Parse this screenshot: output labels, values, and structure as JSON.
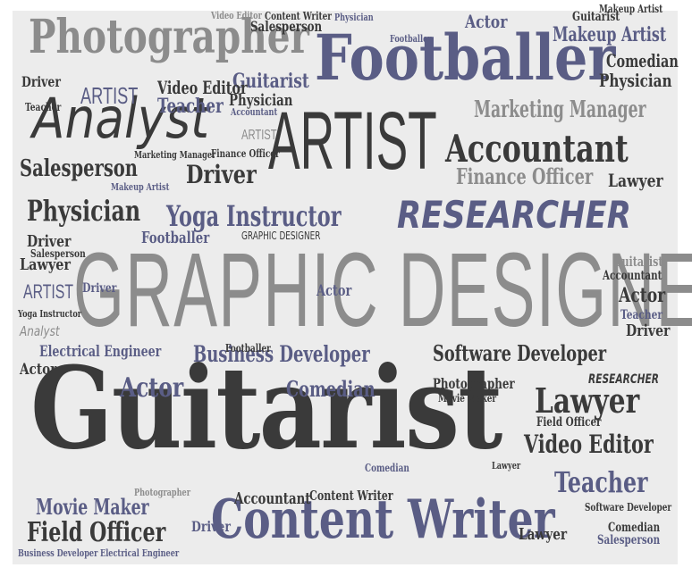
{
  "colors": {
    "background": "#ececec",
    "dark": "#3a3a3a",
    "gray": "#8c8c8c",
    "blue": "#5a5d85"
  },
  "words": {
    "guitarist_big": "Guitarist",
    "graphic_designer_big": "GRAPHIC DESIGNER",
    "footballer_big": "Footballer",
    "content_writer_big": "Content Writer",
    "photographer_big": "Photographer",
    "artist_big": "ARTIST",
    "analyst_big": "Analyst",
    "researcher_big": "RESEARCHER",
    "accountant_big": "Accountant",
    "yoga_instructor": "Yoga Instructor",
    "physician_big": "Physician",
    "salesperson_big": "Salesperson",
    "driver_big": "Driver",
    "marketing_manager": "Marketing Manager",
    "finance_officer_big": "Finance Officer",
    "business_developer_big": "Business Developer",
    "software_developer_big": "Software Developer",
    "electrical_engineer_big": "Electrical Engineer",
    "lawyer_big": "Lawyer",
    "teacher_big": "Teacher",
    "video_editor_big": "Video Editor",
    "actor_big": "Actor",
    "comedian_big": "Comedian",
    "field_officer_big": "Field Officer",
    "movie_maker_big": "Movie Maker",
    "makeup_artist_big": "Makeup Artist",
    "guitarist_mid": "Guitarist",
    "accountant_mid": "Accountant",
    "artist_mid": "ARTIST",
    "teacher_mid": "Teacher",
    "physician_mid": "Physician",
    "video_editor_mid": "Video Editor",
    "lawyer_mid": "Lawyer",
    "footballer_mid": "Footballer",
    "driver_mid": "Driver",
    "comedian_mid": "Comedian",
    "physician_right": "Physician",
    "lawyer_right": "Lawyer",
    "actor_right": "Actor",
    "driver_right": "Driver",
    "salesperson_left": "Salesperson",
    "lawyer_left": "Lawyer",
    "artist_left": "ARTIST",
    "driver_left": "Driver",
    "teacher_left": "Teacher",
    "actor_left": "Actor",
    "actor_mid": "Actor",
    "driver_bottom": "Driver",
    "accountant_bottom": "Accountant",
    "comedian_bottom": "Comedian",
    "salesperson_bottom": "Salesperson",
    "makeup_artist_mid": "Makeup Artist",
    "footballer_left": "Footballer",
    "content_writer_mid": "Content Writer",
    "photographer_mid": "Photographer",
    "guitarist_right": "Guitarist",
    "actor_small": "Actor",
    "artist_small": "ARTIST",
    "analyst_small": "Analyst",
    "footballer_small": "Footballer",
    "teacher_small": "Teacher",
    "finance_officer_small": "Finance Officer",
    "photographer_small": "Photographer",
    "yoga_instructor_small": "Yoga Instructor",
    "video_editor_small": "Video Editor",
    "content_writer_small": "Content Writer",
    "physician_small": "Physician",
    "salesperson_small": "Salesperson",
    "guitarist_small": "Guitarist",
    "field_officer_small": "Field Officer",
    "business_developer_small": "Business Developer",
    "movie_maker_small": "Movie Maker",
    "makeup_artist_small": "Makeup Artist",
    "graphic_designer_small": "GRAPHIC DESIGNER",
    "comedian_small": "Comedian",
    "accountant_small": "Accountant",
    "lawyer_small": "Lawyer",
    "researcher_small": "RESEARCHER",
    "electrical_engineer_small": "Electrical Engineer",
    "marketing_manager_small": "Marketing Manager",
    "software_developer_small": "Software Developer",
    "driver_small": "Driver"
  }
}
